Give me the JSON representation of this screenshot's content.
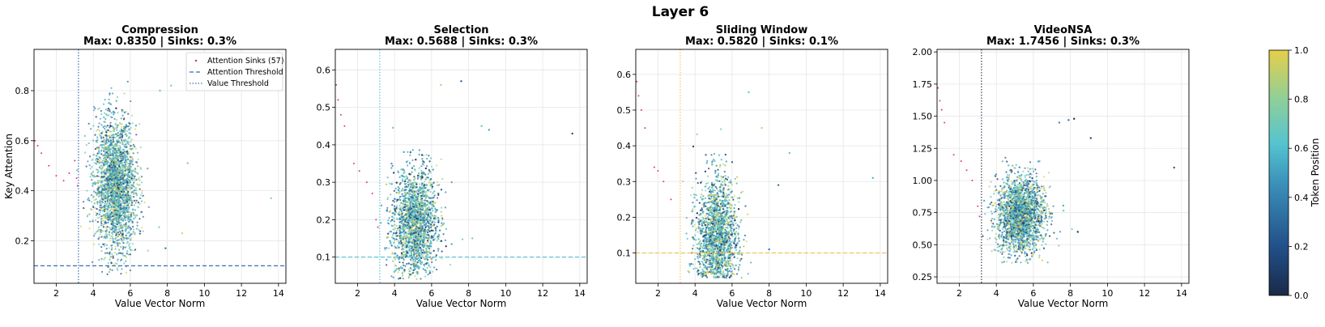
{
  "figure": {
    "suptitle": "Layer 6"
  },
  "colorbar": {
    "label": "Token Position",
    "ticks": [
      "0.0",
      "0.2",
      "0.4",
      "0.6",
      "0.8",
      "1.0"
    ],
    "colors": [
      "#1a2a48",
      "#22508a",
      "#3a8fb8",
      "#55c4d0",
      "#8fcf98",
      "#e6cf4a"
    ]
  },
  "chart_data": [
    {
      "type": "scatter",
      "title": "Compression",
      "subtitle": "Max: 0.8350 | Sinks: 0.3%",
      "xlabel": "Value Vector Norm",
      "ylabel": "Key Attention",
      "xlim": [
        0.8,
        14.4
      ],
      "ylim": [
        0.03,
        0.965
      ],
      "xticks": [
        2,
        4,
        6,
        8,
        10,
        12,
        14
      ],
      "yticks": [
        0.2,
        0.4,
        0.6,
        0.8
      ],
      "attention_threshold": 0.1,
      "value_threshold": 3.2,
      "threshold_color": "#3a6db8",
      "cloud": {
        "cx": 5.2,
        "cy": 0.42,
        "sx": 0.55,
        "sy": 0.13,
        "ymin": 0.05,
        "ymax": 0.84
      },
      "sink_points": [
        [
          0.85,
          0.6
        ],
        [
          1.0,
          0.58
        ],
        [
          1.2,
          0.55
        ],
        [
          1.6,
          0.5
        ],
        [
          2.0,
          0.46
        ],
        [
          2.4,
          0.44
        ],
        [
          2.7,
          0.47
        ],
        [
          3.0,
          0.52
        ],
        [
          3.1,
          0.45
        ],
        [
          3.15,
          0.42
        ]
      ],
      "outliers": [
        [
          13.6,
          0.37
        ],
        [
          9.1,
          0.51
        ],
        [
          8.2,
          0.82
        ],
        [
          7.6,
          0.8
        ],
        [
          8.8,
          0.23
        ],
        [
          7.9,
          0.17
        ]
      ],
      "legend": {
        "placement": "top-right",
        "entries": [
          "Attention Sinks (57)",
          "Attention Threshold",
          "Value Threshold"
        ]
      }
    },
    {
      "type": "scatter",
      "title": "Selection",
      "subtitle": "Max: 0.5688 | Sinks: 0.3%",
      "xlabel": "Value Vector Norm",
      "ylabel": "",
      "xlim": [
        0.8,
        14.4
      ],
      "ylim": [
        0.03,
        0.655
      ],
      "xticks": [
        2,
        4,
        6,
        8,
        10,
        12,
        14
      ],
      "yticks": [
        0.1,
        0.2,
        0.3,
        0.4,
        0.5,
        0.6
      ],
      "attention_threshold": 0.1,
      "value_threshold": 3.2,
      "threshold_color": "#5ec4d6",
      "cloud": {
        "cx": 5.1,
        "cy": 0.19,
        "sx": 0.6,
        "sy": 0.075,
        "ymin": 0.04,
        "ymax": 0.52
      },
      "sink_points": [
        [
          0.85,
          0.56
        ],
        [
          0.95,
          0.52
        ],
        [
          1.1,
          0.48
        ],
        [
          1.3,
          0.45
        ],
        [
          1.8,
          0.35
        ],
        [
          2.1,
          0.33
        ],
        [
          2.5,
          0.3
        ],
        [
          2.8,
          0.27
        ],
        [
          3.0,
          0.2
        ],
        [
          3.1,
          0.18
        ]
      ],
      "outliers": [
        [
          13.6,
          0.43
        ],
        [
          9.1,
          0.44
        ],
        [
          8.7,
          0.45
        ],
        [
          7.6,
          0.57
        ],
        [
          6.5,
          0.56
        ],
        [
          8.2,
          0.15
        ]
      ]
    },
    {
      "type": "scatter",
      "title": "Sliding Window",
      "subtitle": "Max: 0.5820 | Sinks: 0.1%",
      "xlabel": "Value Vector Norm",
      "ylabel": "",
      "xlim": [
        0.8,
        14.4
      ],
      "ylim": [
        0.015,
        0.67
      ],
      "xticks": [
        2,
        4,
        6,
        8,
        10,
        12,
        14
      ],
      "yticks": [
        0.1,
        0.2,
        0.3,
        0.4,
        0.5,
        0.6
      ],
      "attention_threshold": 0.1,
      "value_threshold": 3.2,
      "threshold_color": "#f0c850",
      "cloud": {
        "cx": 5.2,
        "cy": 0.14,
        "sx": 0.55,
        "sy": 0.085,
        "ymin": 0.03,
        "ymax": 0.5
      },
      "sink_points": [
        [
          0.85,
          0.58
        ],
        [
          0.95,
          0.54
        ],
        [
          1.1,
          0.5
        ],
        [
          1.3,
          0.45
        ],
        [
          1.8,
          0.34
        ],
        [
          2.0,
          0.33
        ],
        [
          2.3,
          0.3
        ],
        [
          2.7,
          0.25
        ]
      ],
      "outliers": [
        [
          13.6,
          0.31
        ],
        [
          9.1,
          0.38
        ],
        [
          8.5,
          0.29
        ],
        [
          7.6,
          0.45
        ],
        [
          6.9,
          0.55
        ],
        [
          8.0,
          0.11
        ]
      ]
    },
    {
      "type": "scatter",
      "title": "VideoNSA",
      "subtitle": "Max: 1.7456 | Sinks: 0.3%",
      "xlabel": "Value Vector Norm",
      "ylabel": "",
      "xlim": [
        0.8,
        14.4
      ],
      "ylim": [
        0.2,
        2.02
      ],
      "xticks": [
        2,
        4,
        6,
        8,
        10,
        12,
        14
      ],
      "yticks": [
        0.25,
        0.5,
        0.75,
        1.0,
        1.25,
        1.5,
        1.75,
        2.0
      ],
      "value_threshold": 3.2,
      "threshold_color": "#3b3b5a",
      "cloud": {
        "cx": 5.3,
        "cy": 0.73,
        "sx": 0.65,
        "sy": 0.15,
        "ymin": 0.35,
        "ymax": 1.35
      },
      "sink_points": [
        [
          0.85,
          1.72
        ],
        [
          0.95,
          1.62
        ],
        [
          1.05,
          1.55
        ],
        [
          1.2,
          1.45
        ],
        [
          1.7,
          1.2
        ],
        [
          2.1,
          1.15
        ],
        [
          2.4,
          1.08
        ],
        [
          2.7,
          1.0
        ],
        [
          3.0,
          0.8
        ],
        [
          3.1,
          0.72
        ]
      ],
      "outliers": [
        [
          13.6,
          1.1
        ],
        [
          9.1,
          1.33
        ],
        [
          8.2,
          1.48
        ],
        [
          7.9,
          1.47
        ],
        [
          7.4,
          1.45
        ],
        [
          8.4,
          0.6
        ]
      ]
    }
  ]
}
